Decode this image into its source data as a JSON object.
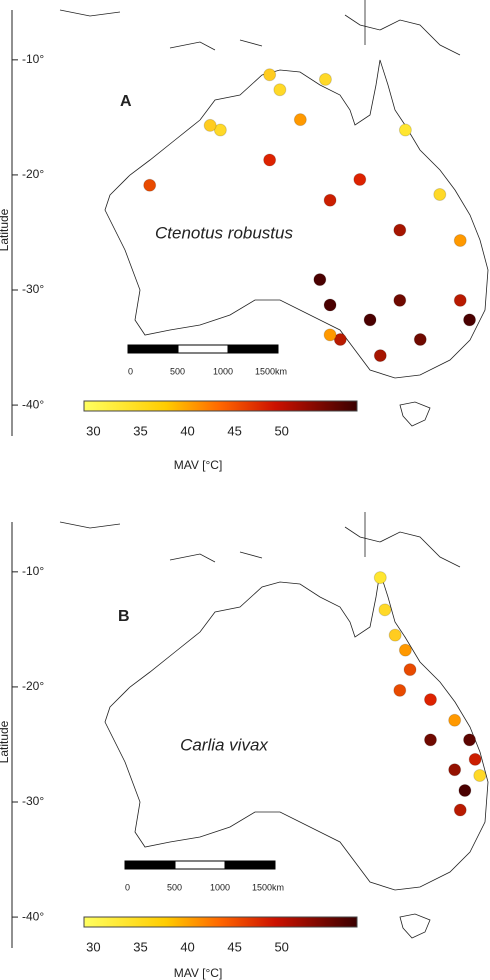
{
  "chart_data": [
    {
      "type": "map",
      "panel": "A",
      "label": "Ctenotus robustus",
      "y_axis_label": "Latitude",
      "xlim": [
        101.7,
        154.4
      ],
      "ylim": [
        -4.8,
        -42.6
      ],
      "yticks": [
        {
          "value": -10,
          "label": "-10°"
        },
        {
          "value": -20,
          "label": "-20°"
        },
        {
          "value": -30,
          "label": "-30°"
        },
        {
          "value": -40,
          "label": "-40°"
        }
      ],
      "scale_bar": [
        "0",
        "500",
        "1000",
        "1500km"
      ],
      "colorbar": {
        "title": "MAV [°C]",
        "lim": [
          29,
          58
        ],
        "ticks": [
          30,
          35,
          40,
          45,
          50
        ]
      },
      "points": {
        "lon": [
          131.8,
          130.7,
          125.4,
          124.3,
          134,
          136.7,
          145.3,
          117.8,
          130.7,
          137.2,
          149,
          151.2,
          136.1,
          137.2,
          141.5,
          144.7,
          151.2,
          152.2,
          142.6,
          138.3,
          146.9,
          137.2,
          144.7,
          140.4
        ],
        "lat": [
          -12.6,
          -11.3,
          -16.1,
          -15.7,
          -15.2,
          -11.7,
          -16.1,
          -20.9,
          -18.7,
          -22.2,
          -21.7,
          -25.7,
          -29.1,
          -31.3,
          -32.6,
          -30.9,
          -30.9,
          -32.6,
          -35.7,
          -34.3,
          -34.3,
          -33.9,
          -24.8,
          -20.4
        ],
        "mav": [
          33,
          34,
          33,
          34,
          38,
          33,
          32,
          42,
          44,
          45,
          33,
          38,
          54,
          52,
          55,
          50,
          46,
          52,
          47,
          46,
          50,
          38,
          47,
          44
        ]
      }
    },
    {
      "type": "map",
      "panel": "B",
      "label": "Carlia vivax",
      "y_axis_label": "Latitude",
      "xlim": [
        101.7,
        154.4
      ],
      "ylim": [
        -4.8,
        -42.6
      ],
      "yticks": [
        {
          "value": -10,
          "label": "-10°"
        },
        {
          "value": -20,
          "label": "-20°"
        },
        {
          "value": -30,
          "label": "-30°"
        },
        {
          "value": -40,
          "label": "-40°"
        }
      ],
      "scale_bar": [
        "0",
        "500",
        "1000",
        "1500km"
      ],
      "colorbar": {
        "title": "MAV [°C]",
        "lim": [
          29,
          58
        ],
        "ticks": [
          30,
          35,
          40,
          45,
          50
        ]
      },
      "points": {
        "lon": [
          142.6,
          143.1,
          144.2,
          145.3,
          145.8,
          148,
          150.6,
          152.2,
          152.8,
          153.3,
          151.7,
          151.2,
          150.6,
          148,
          144.7
        ],
        "lat": [
          -10.5,
          -13.3,
          -15.5,
          -16.8,
          -18.5,
          -21.1,
          -22.9,
          -24.6,
          -26.3,
          -27.7,
          -29,
          -30.7,
          -27.2,
          -24.6,
          -20.3
        ],
        "mav": [
          32,
          33,
          34,
          38,
          42,
          44,
          38,
          51,
          45,
          33,
          52,
          46,
          48,
          50,
          42
        ]
      }
    }
  ]
}
